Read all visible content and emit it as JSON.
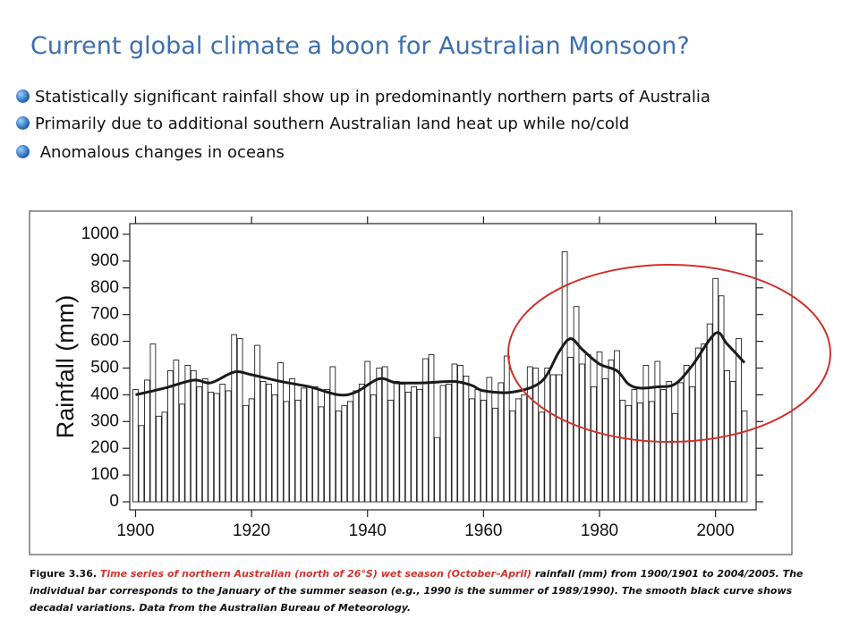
{
  "slide": {
    "title": "Current global climate a boon for Australian Monsoon?",
    "bullets": [
      "Statistically significant rainfall show up in predominantly northern parts of Australia",
      "Primarily due to additional southern Australian land heat up while no/cold",
      "Anomalous changes in oceans"
    ],
    "caption_label": "Figure 3.36.",
    "caption_highlight": "Time series of northern Australian (north of 26°S)  wet season (October–April)",
    "caption_text": "rainfall (mm) from 1900/1901 to 2004/2005. The individual bar corresponds to the January of the  summer season (e.g., 1990 is the summer of 1989/1990).  The smooth black curve shows decadal variations.  Data from the Australian Bureau of Meteorology."
  },
  "chart_data": {
    "type": "bar",
    "ylabel": "Rainfall (mm)",
    "x": [
      1900,
      1901,
      1902,
      1903,
      1904,
      1905,
      1906,
      1907,
      1908,
      1909,
      1910,
      1911,
      1912,
      1913,
      1914,
      1915,
      1916,
      1917,
      1918,
      1919,
      1920,
      1921,
      1922,
      1923,
      1924,
      1925,
      1926,
      1927,
      1928,
      1929,
      1930,
      1931,
      1932,
      1933,
      1934,
      1935,
      1936,
      1937,
      1938,
      1939,
      1940,
      1941,
      1942,
      1943,
      1944,
      1945,
      1946,
      1947,
      1948,
      1949,
      1950,
      1951,
      1952,
      1953,
      1954,
      1955,
      1956,
      1957,
      1958,
      1959,
      1960,
      1961,
      1962,
      1963,
      1964,
      1965,
      1966,
      1967,
      1968,
      1969,
      1970,
      1971,
      1972,
      1973,
      1974,
      1975,
      1976,
      1977,
      1978,
      1979,
      1980,
      1981,
      1982,
      1983,
      1984,
      1985,
      1986,
      1987,
      1988,
      1989,
      1990,
      1991,
      1992,
      1993,
      1994,
      1995,
      1996,
      1997,
      1998,
      1999,
      2000,
      2001,
      2002,
      2003,
      2004,
      2005
    ],
    "values": [
      420,
      285,
      455,
      590,
      320,
      335,
      490,
      530,
      365,
      510,
      490,
      430,
      460,
      410,
      405,
      440,
      415,
      625,
      610,
      360,
      385,
      585,
      450,
      440,
      400,
      520,
      375,
      460,
      380,
      425,
      430,
      430,
      355,
      420,
      505,
      340,
      360,
      375,
      415,
      440,
      525,
      400,
      500,
      505,
      380,
      450,
      440,
      410,
      430,
      420,
      535,
      550,
      240,
      435,
      440,
      515,
      510,
      470,
      385,
      420,
      380,
      465,
      350,
      445,
      545,
      340,
      385,
      400,
      505,
      500,
      335,
      500,
      475,
      475,
      935,
      540,
      730,
      515,
      550,
      430,
      560,
      460,
      530,
      565,
      380,
      360,
      420,
      370,
      510,
      375,
      525,
      420,
      450,
      330,
      445,
      510,
      430,
      575,
      590,
      665,
      835,
      770,
      490,
      450,
      610,
      340
    ],
    "color": "#ffffff",
    "smooth": {
      "x": [
        1900,
        1905,
        1910,
        1913,
        1917,
        1920,
        1925,
        1930,
        1935,
        1938,
        1942,
        1945,
        1950,
        1955,
        1958,
        1960,
        1965,
        1970,
        1973,
        1975,
        1977,
        1980,
        1983,
        1985,
        1987,
        1990,
        1993,
        1996,
        2000,
        2002,
        2005
      ],
      "values": [
        400,
        425,
        455,
        445,
        485,
        475,
        450,
        430,
        400,
        410,
        460,
        445,
        445,
        450,
        435,
        415,
        410,
        450,
        560,
        610,
        570,
        515,
        490,
        440,
        425,
        430,
        440,
        510,
        630,
        590,
        520
      ],
      "color": "#1a1a1a"
    },
    "xlim": [
      1899,
      2007
    ],
    "xticks": [
      1900,
      1920,
      1940,
      1960,
      1980,
      2000
    ],
    "ylim": [
      -30,
      1040
    ],
    "yticks": [
      0,
      100,
      200,
      300,
      400,
      500,
      600,
      700,
      800,
      900,
      1000
    ]
  }
}
